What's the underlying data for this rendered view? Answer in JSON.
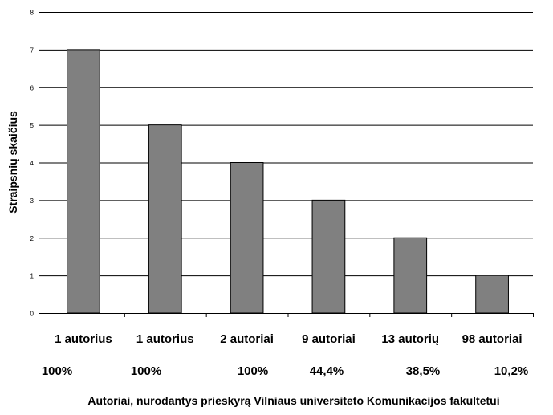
{
  "chart_data": {
    "type": "bar",
    "categories": [
      "1 autorius",
      "1 autorius",
      "2 autoriai",
      "9 autoriai",
      "13 autorių",
      "98 autoriai"
    ],
    "values": [
      7,
      5,
      4,
      3,
      2,
      1
    ],
    "percent_labels": [
      "100%",
      "100%",
      "100%",
      "44,4%",
      "38,5%",
      "10,2%"
    ],
    "title": "",
    "xlabel": "Autoriai, nurodantys prieskyrą Vilniaus universiteto Komunikacijos fakultetui",
    "ylabel": "Straipsnių skaičius",
    "ylim": [
      0,
      8
    ],
    "yticks": [
      "0",
      "1",
      "2",
      "3",
      "4",
      "5",
      "6",
      "7",
      "8"
    ],
    "grid": true,
    "legend": "none",
    "colors": {
      "bar_fill": "#808080",
      "bar_stroke": "#000000",
      "grid": "#000000",
      "axis": "#000000"
    }
  }
}
